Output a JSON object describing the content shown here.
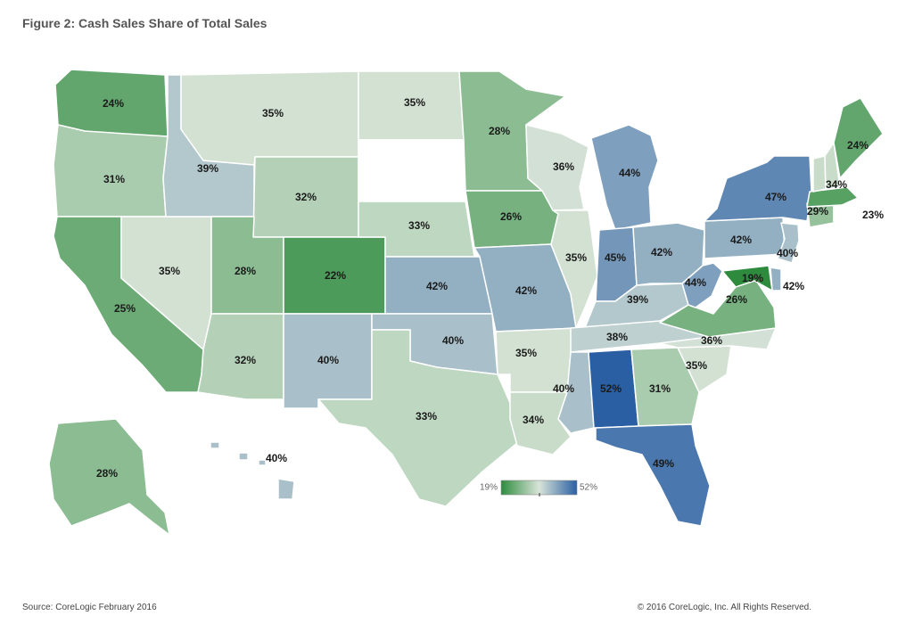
{
  "title": "Figure 2: Cash Sales Share of Total Sales",
  "legend": {
    "min_label": "19%",
    "max_label": "52%",
    "color_low": "#2e8b3e",
    "color_mid": "#d8e4d8",
    "color_high": "#2a5fa3"
  },
  "footer": {
    "source": "Source: CoreLogic February 2016",
    "copyright": "© 2016 CoreLogic, Inc. All Rights Reserved."
  },
  "states": [
    {
      "id": "WA",
      "label": "24%",
      "value": 24
    },
    {
      "id": "OR",
      "label": "31%",
      "value": 31
    },
    {
      "id": "CA",
      "label": "25%",
      "value": 25
    },
    {
      "id": "NV",
      "label": "35%",
      "value": 35
    },
    {
      "id": "ID",
      "label": "39%",
      "value": 39
    },
    {
      "id": "MT",
      "label": "35%",
      "value": 35
    },
    {
      "id": "WY",
      "label": "32%",
      "value": 32
    },
    {
      "id": "UT",
      "label": "28%",
      "value": 28
    },
    {
      "id": "AZ",
      "label": "32%",
      "value": 32
    },
    {
      "id": "CO",
      "label": "22%",
      "value": 22
    },
    {
      "id": "NM",
      "label": "40%",
      "value": 40
    },
    {
      "id": "ND",
      "label": "35%",
      "value": 35
    },
    {
      "id": "SD",
      "label": "",
      "value": null
    },
    {
      "id": "NE",
      "label": "33%",
      "value": 33
    },
    {
      "id": "KS",
      "label": "42%",
      "value": 42
    },
    {
      "id": "OK",
      "label": "40%",
      "value": 40
    },
    {
      "id": "TX",
      "label": "33%",
      "value": 33
    },
    {
      "id": "MN",
      "label": "28%",
      "value": 28
    },
    {
      "id": "IA",
      "label": "26%",
      "value": 26
    },
    {
      "id": "MO",
      "label": "42%",
      "value": 42
    },
    {
      "id": "AR",
      "label": "35%",
      "value": 35
    },
    {
      "id": "LA",
      "label": "34%",
      "value": 34
    },
    {
      "id": "WI",
      "label": "36%",
      "value": 36
    },
    {
      "id": "IL",
      "label": "35%",
      "value": 35
    },
    {
      "id": "MI",
      "label": "44%",
      "value": 44
    },
    {
      "id": "IN",
      "label": "45%",
      "value": 45
    },
    {
      "id": "OH",
      "label": "42%",
      "value": 42
    },
    {
      "id": "KY",
      "label": "39%",
      "value": 39
    },
    {
      "id": "TN",
      "label": "38%",
      "value": 38
    },
    {
      "id": "MS",
      "label": "40%",
      "value": 40
    },
    {
      "id": "AL",
      "label": "52%",
      "value": 52
    },
    {
      "id": "GA",
      "label": "31%",
      "value": 31
    },
    {
      "id": "FL",
      "label": "49%",
      "value": 49
    },
    {
      "id": "SC",
      "label": "35%",
      "value": 35
    },
    {
      "id": "NC",
      "label": "36%",
      "value": 36
    },
    {
      "id": "VA",
      "label": "26%",
      "value": 26
    },
    {
      "id": "WV",
      "label": "44%",
      "value": 44
    },
    {
      "id": "PA",
      "label": "42%",
      "value": 42
    },
    {
      "id": "NY",
      "label": "47%",
      "value": 47
    },
    {
      "id": "NJ",
      "label": "40%",
      "value": 40
    },
    {
      "id": "DE",
      "label": "42%",
      "value": 42
    },
    {
      "id": "MD",
      "label": "19%",
      "value": 19
    },
    {
      "id": "CT",
      "label": "29%",
      "value": 29
    },
    {
      "id": "RI",
      "label": "",
      "value": null
    },
    {
      "id": "MA",
      "label": "23%",
      "value": 23
    },
    {
      "id": "VT",
      "label": "34%",
      "value": 34
    },
    {
      "id": "NH",
      "label": "",
      "value": 34
    },
    {
      "id": "ME",
      "label": "24%",
      "value": 24
    },
    {
      "id": "AK",
      "label": "28%",
      "value": 28
    },
    {
      "id": "HI",
      "label": "40%",
      "value": 40
    }
  ]
}
